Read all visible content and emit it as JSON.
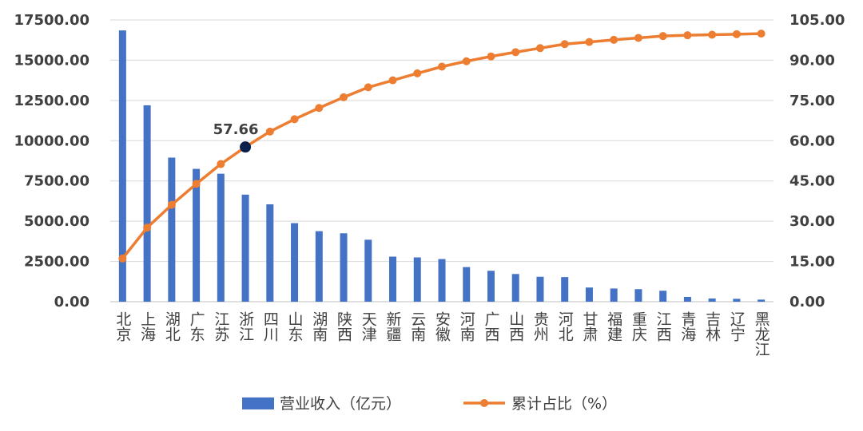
{
  "chart_data": {
    "type": "bar-line",
    "categories": [
      "北京",
      "上海",
      "湖北",
      "广东",
      "江苏",
      "浙江",
      "四川",
      "山东",
      "湖南",
      "陕西",
      "天津",
      "新疆",
      "云南",
      "安徽",
      "河南",
      "广西",
      "山西",
      "贵州",
      "河北",
      "甘肃",
      "福建",
      "重庆",
      "江西",
      "青海",
      "吉林",
      "辽宁",
      "黑龙江"
    ],
    "series": [
      {
        "name": "营业收入（亿元）",
        "type": "bar",
        "axis": "left",
        "color": "#4472C4",
        "values": [
          16850,
          12200,
          8950,
          8250,
          7950,
          6650,
          6050,
          4880,
          4380,
          4250,
          3850,
          2800,
          2750,
          2650,
          2150,
          1920,
          1720,
          1550,
          1530,
          880,
          820,
          780,
          680,
          300,
          200,
          180,
          130
        ]
      },
      {
        "name": "累计占比（%）",
        "type": "line",
        "axis": "right",
        "color": "#ED7D31",
        "values": [
          16.1,
          27.6,
          36.1,
          43.9,
          51.3,
          57.66,
          63.4,
          68.0,
          72.2,
          76.2,
          79.9,
          82.5,
          85.1,
          87.6,
          89.6,
          91.4,
          93.0,
          94.5,
          96.0,
          96.8,
          97.6,
          98.3,
          99.0,
          99.3,
          99.5,
          99.7,
          99.9
        ]
      }
    ],
    "left_axis": {
      "min": 0,
      "max": 17500,
      "step": 2500,
      "decimals": 2
    },
    "right_axis": {
      "min": 0,
      "max": 105,
      "step": 15,
      "decimals": 2
    },
    "highlight": {
      "index": 5,
      "label": "57.66",
      "color": "#0B1F4D"
    },
    "gridlines": true,
    "legend_position": "bottom"
  }
}
